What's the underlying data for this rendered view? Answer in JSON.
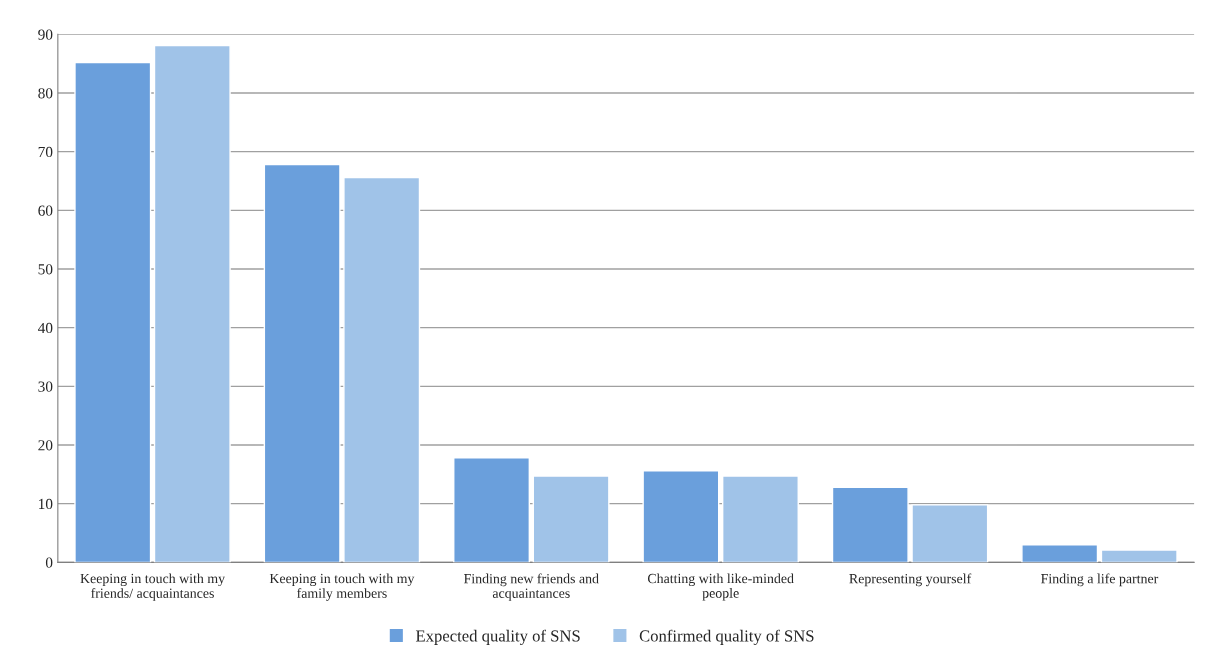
{
  "chart_data": {
    "type": "bar",
    "categories": [
      "Keeping in touch with my\nfriends/ acquaintances",
      "Keeping in touch with my\nfamily members",
      "Finding new friends and\nacquaintances",
      "Chatting with like-minded\npeople",
      "Representing yourself",
      "Finding a life partner"
    ],
    "series": [
      {
        "name": "Expected quality of SNS",
        "color": "#6a9fdc",
        "values": [
          85.2,
          67.8,
          17.8,
          15.6,
          12.8,
          3.0
        ]
      },
      {
        "name": "Confirmed quality of SNS",
        "color": "#a0c3e8",
        "values": [
          88.1,
          65.6,
          14.7,
          14.7,
          9.8,
          2.1
        ]
      }
    ],
    "ylim": [
      0,
      90
    ],
    "yticks": [
      0,
      10,
      20,
      30,
      40,
      50,
      60,
      70,
      80,
      90
    ],
    "grid": "y",
    "legend": "bottom"
  }
}
